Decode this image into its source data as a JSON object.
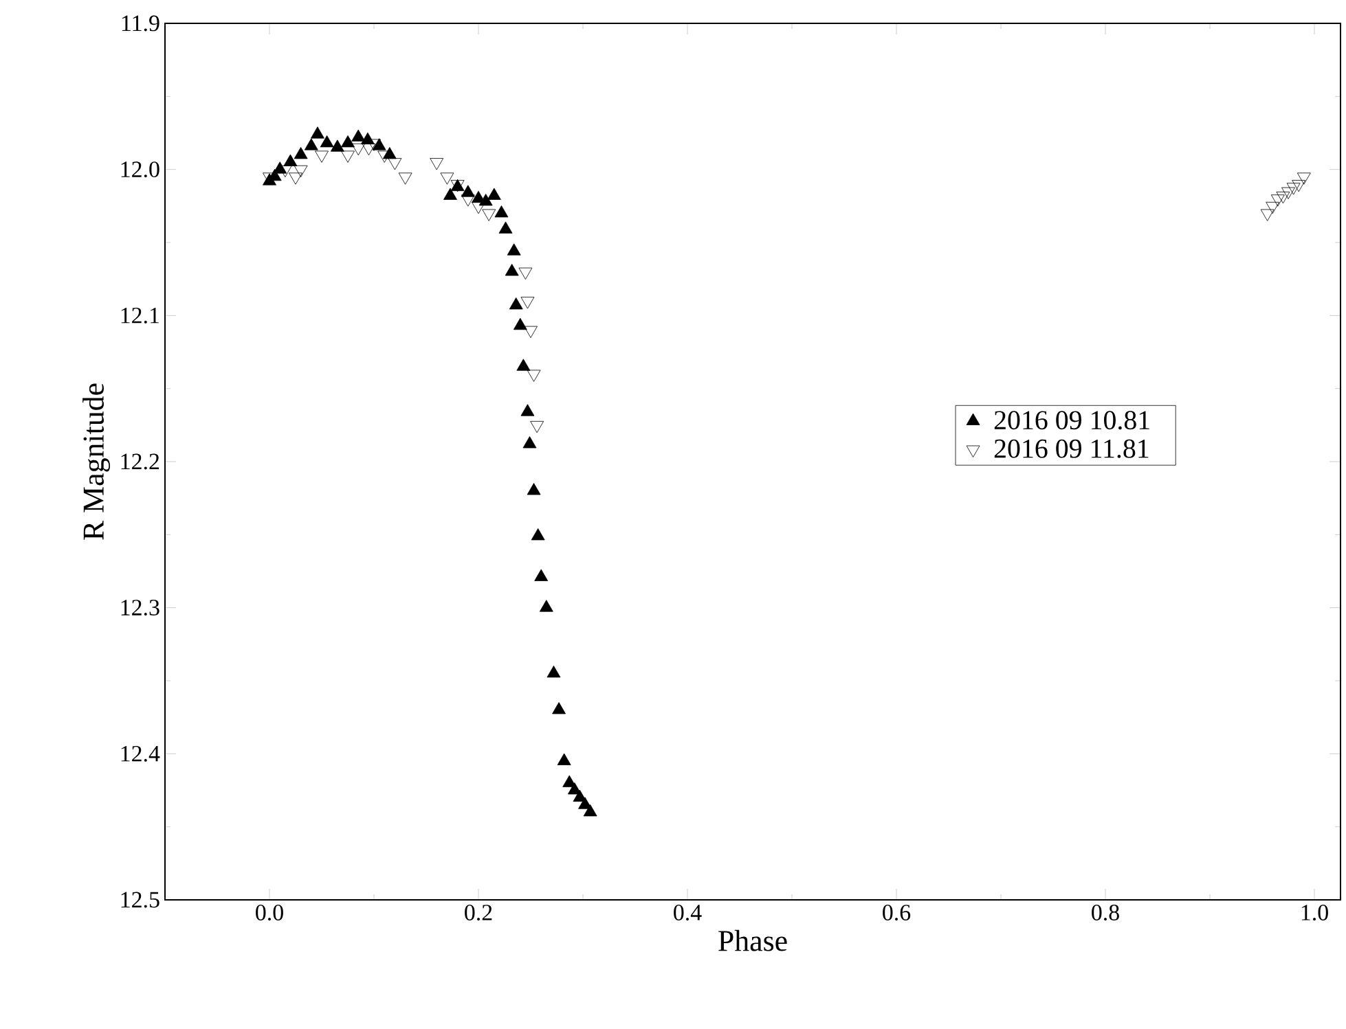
{
  "chart_data": {
    "type": "scatter",
    "xlabel": "Phase",
    "ylabel": "R Magnitude",
    "xlim": [
      -0.1,
      1.025
    ],
    "ylim": [
      12.5,
      11.9
    ],
    "xticks": [
      {
        "value": 0,
        "label": "0.0"
      },
      0.2,
      0.4,
      0.6,
      0.8,
      {
        "value": 1,
        "label": "1.0"
      }
    ],
    "yticks": [
      11.9,
      {
        "value": 12,
        "label": "12.0"
      },
      12.1,
      12.2,
      12.3,
      12.4,
      12.5
    ],
    "grid": false,
    "legend": "right",
    "series": [
      {
        "name": "2016  09 10.81",
        "color": "#000000",
        "marker": "triangle",
        "x": [
          0.0,
          0.005,
          0.01,
          0.02,
          0.03,
          0.04,
          0.046,
          0.055,
          0.065,
          0.075,
          0.085,
          0.094,
          0.105,
          0.115,
          0.173,
          0.18,
          0.19,
          0.2,
          0.207,
          0.215,
          0.222,
          0.226,
          0.234,
          0.232,
          0.236,
          0.24,
          0.243,
          0.247,
          0.249,
          0.253,
          0.257,
          0.26,
          0.265,
          0.272,
          0.277,
          0.282,
          0.287,
          0.292,
          0.297,
          0.302,
          0.307
        ],
        "values": [
          12.008,
          12.005,
          12.0,
          11.995,
          11.99,
          11.984,
          11.976,
          11.982,
          11.985,
          11.982,
          11.978,
          11.98,
          11.984,
          11.99,
          12.018,
          12.012,
          12.016,
          12.02,
          12.022,
          12.018,
          12.03,
          12.041,
          12.056,
          12.07,
          12.093,
          12.107,
          12.135,
          12.166,
          12.188,
          12.22,
          12.251,
          12.279,
          12.3,
          12.345,
          12.37,
          12.405,
          12.42,
          12.425,
          12.43,
          12.435,
          12.44
        ]
      },
      {
        "name": "2016  09 11.81",
        "color": "#000000",
        "marker": "triangle-down",
        "x": [
          0.0,
          0.015,
          0.025,
          0.03,
          0.05,
          0.075,
          0.085,
          0.095,
          0.1,
          0.11,
          0.12,
          0.13,
          0.16,
          0.17,
          0.18,
          0.19,
          0.2,
          0.21,
          0.245,
          0.247,
          0.25,
          0.253,
          0.256,
          0.955,
          0.96,
          0.965,
          0.97,
          0.975,
          0.98,
          0.985,
          0.99
        ],
        "values": [
          12.005,
          12.0,
          12.005,
          12.0,
          11.99,
          11.99,
          11.985,
          11.985,
          11.982,
          11.99,
          11.995,
          12.005,
          11.995,
          12.005,
          12.01,
          12.02,
          12.025,
          12.03,
          12.07,
          12.09,
          12.11,
          12.14,
          12.175,
          12.03,
          12.025,
          12.02,
          12.018,
          12.015,
          12.012,
          12.01,
          12.005
        ]
      }
    ]
  }
}
